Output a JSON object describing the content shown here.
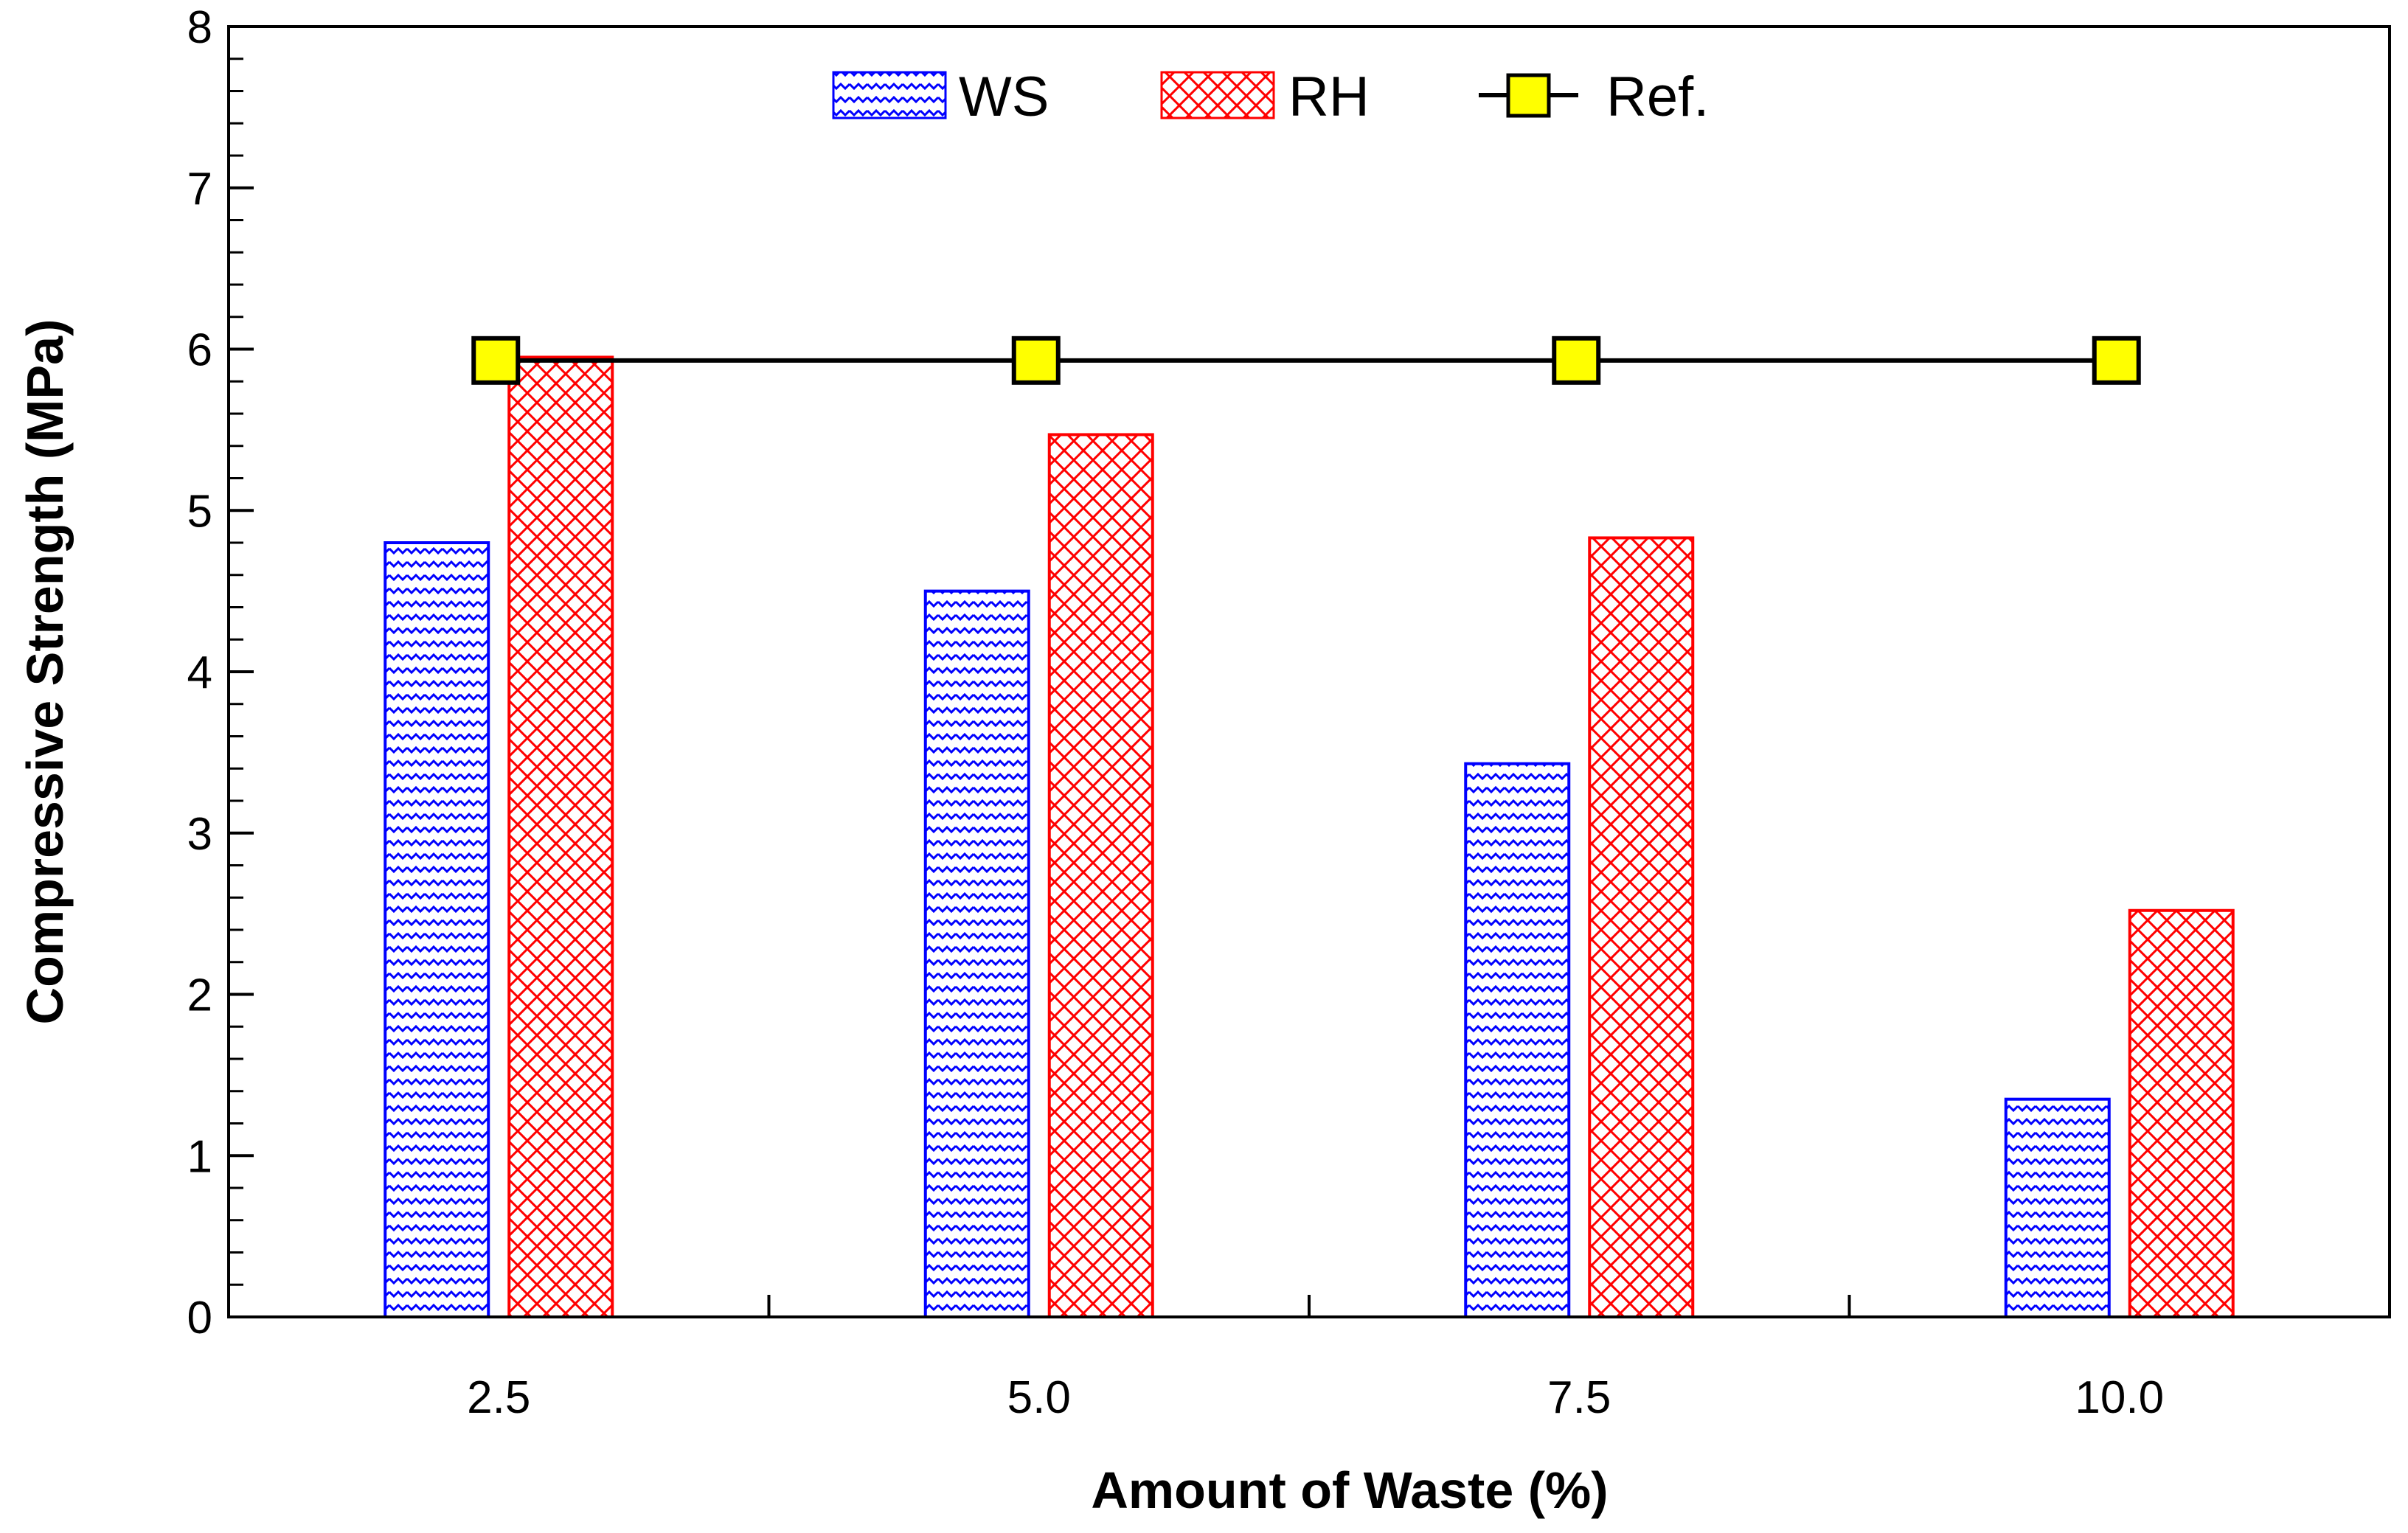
{
  "chart_data": {
    "type": "bar",
    "title": "",
    "xlabel": "Amount of Waste (%)",
    "ylabel": "Compressive Strength (MPa)",
    "ylim": [
      0,
      8
    ],
    "yticks": [
      "0",
      "1",
      "2",
      "3",
      "4",
      "5",
      "6",
      "7",
      "8"
    ],
    "categories": [
      "2.5",
      "5.0",
      "7.5",
      "10.0"
    ],
    "series": [
      {
        "name": "WS",
        "type": "bar",
        "pattern": "zigzag",
        "color": "#0000ff",
        "values": [
          4.8,
          4.5,
          3.43,
          1.35
        ]
      },
      {
        "name": "RH",
        "type": "bar",
        "pattern": "crosshatch",
        "color": "#ff0000",
        "values": [
          5.95,
          5.47,
          4.83,
          2.52
        ]
      },
      {
        "name": "Ref.",
        "type": "line",
        "marker": "square",
        "color": "#000000",
        "marker_fill": "#ffff00",
        "values": [
          5.93,
          5.93,
          5.93,
          5.93
        ]
      }
    ],
    "grid": false,
    "legend": "top-center"
  }
}
